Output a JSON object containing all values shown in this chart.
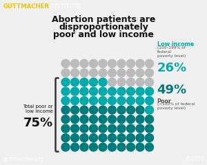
{
  "title_line1": "Abortion patients are",
  "title_line2": "disproportionately",
  "title_line3": "poor and low income",
  "header_yellow": "GUTTMACHER",
  "header_white": " INSTITUTE",
  "footer_left": "guttmacher.org",
  "footer_right": "©2016",
  "total_label": "Total poor or\nlow income",
  "total_pct": "75%",
  "low_income_label": "Low income",
  "low_income_sub": "(100–199% of\nfederal\npoverty level)",
  "low_income_pct": "26%",
  "poor_label": "Poor",
  "poor_sub": "(<100% of federal\npoverty level)",
  "poor_pct": "49%",
  "color_poor": "#007B7B",
  "color_low_income": "#00AAAA",
  "color_other": "#BBBBBB",
  "color_header_bg": "#222222",
  "color_yellow": "#F5C400",
  "color_bg": "#F0F0F0",
  "color_title": "#111111",
  "color_footer_bg": "#777777",
  "color_footer_text": "#FFFFFF",
  "grid_cols": 10,
  "grid_rows": 10,
  "poor_count": 49,
  "low_income_count": 26,
  "other_count": 25
}
